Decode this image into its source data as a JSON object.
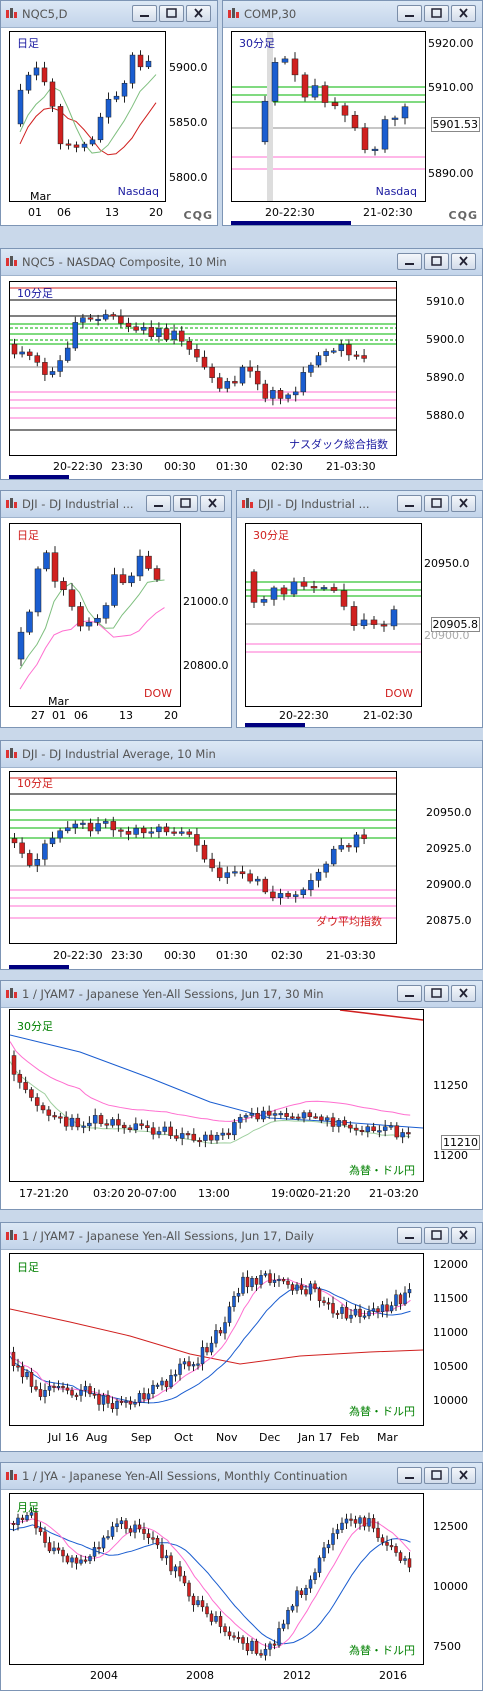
{
  "colors": {
    "red": "#d0201f",
    "blue": "#1a5dd0",
    "green": "#00b400",
    "pink": "#ff6fd0",
    "black": "#000000",
    "gray": "#8e8e8e",
    "navy": "#1a1aa0"
  },
  "icons": {
    "window": "chart-window-icon",
    "min": "minimize-icon",
    "max": "maximize-icon",
    "close": "close-icon"
  },
  "panels": [
    {
      "id": "nqc5-daily",
      "title": "NQC5,D",
      "period": "日足",
      "instrument": "Nasdaq",
      "ylabels": [
        "5900.0",
        "5850.0",
        "5800.0"
      ],
      "xlabels": [
        "01",
        "06",
        "13",
        "20"
      ],
      "month": "Mar",
      "logo": "CQG"
    },
    {
      "id": "comp-30",
      "title": "COMP,30",
      "period": "30分足",
      "instrument": "Nasdaq",
      "ylabels": [
        "5920.00",
        "5910.00",
        "5890.00"
      ],
      "current": "5901.53",
      "xlabels": [
        "20-22:30",
        "21-02:30"
      ],
      "logo": "CQG"
    },
    {
      "id": "nqc5-10",
      "title": "NQC5 - NASDAQ Composite, 10 Min",
      "period": "10分足",
      "instrument": "ナスダック総合指数",
      "ylabels": [
        "5910.0",
        "5900.0",
        "5890.0",
        "5880.0"
      ],
      "xlabels": [
        "20-22:30",
        "23:30",
        "00:30",
        "01:30",
        "02:30",
        "21-03:30"
      ]
    },
    {
      "id": "dji-daily",
      "title": "DJI - DJ Industrial ...",
      "period": "日足",
      "instrument": "DOW",
      "ylabels": [
        "21000.0",
        "20800.0"
      ],
      "xlabels": [
        "27",
        "01",
        "06",
        "13",
        "20"
      ],
      "month": "Mar"
    },
    {
      "id": "dji-30",
      "title": "DJI - DJ Industrial ...",
      "period": "30分足",
      "instrument": "DOW",
      "ylabels": [
        "20950.0",
        "20900.0"
      ],
      "current": "20905.8",
      "xlabels": [
        "20-22:30",
        "21-02:30"
      ]
    },
    {
      "id": "dji-10",
      "title": "DJI - DJ Industrial Average, 10 Min",
      "period": "10分足",
      "instrument": "ダウ平均指数",
      "ylabels": [
        "20950.0",
        "20925.0",
        "20900.0",
        "20875.0"
      ],
      "xlabels": [
        "20-22:30",
        "23:30",
        "00:30",
        "01:30",
        "02:30",
        "21-03:30"
      ]
    },
    {
      "id": "jya-30",
      "title": "1 / JYAM7 - Japanese Yen-All Sessions, Jun 17, 30 Min",
      "period": "30分足",
      "instrument": "為替・ドル円",
      "ylabels": [
        "11250",
        "11200"
      ],
      "current": "11210",
      "xlabels": [
        "17-21:20",
        "03:20",
        "20-07:00",
        "13:00",
        "19:00",
        "20-21:20",
        "21-03:20"
      ]
    },
    {
      "id": "jya-daily",
      "title": "1 / JYAM7 - Japanese Yen-All Sessions, Jun 17, Daily",
      "period": "日足",
      "instrument": "為替・ドル円",
      "ylabels": [
        "12000",
        "11500",
        "11000",
        "10500",
        "10000"
      ],
      "xlabels": [
        "Jul 16",
        "Aug",
        "Sep",
        "Oct",
        "Nov",
        "Dec",
        "Jan 17",
        "Feb",
        "Mar"
      ]
    },
    {
      "id": "jya-monthly",
      "title": "1 / JYA - Japanese Yen-All Sessions, Monthly Continuation",
      "period": "月足",
      "instrument": "為替・ドル円",
      "ylabels": [
        "12500",
        "10000",
        "7500"
      ],
      "xlabels": [
        "2004",
        "2008",
        "2012",
        "2016"
      ]
    }
  ]
}
